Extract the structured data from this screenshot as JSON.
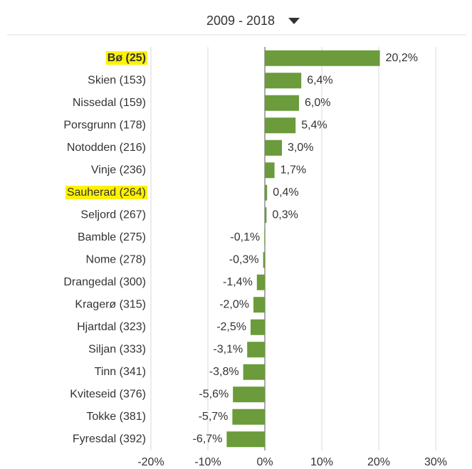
{
  "chart_data": {
    "type": "bar",
    "orientation": "horizontal",
    "title": "2009 - 2018",
    "categories": [
      "Bø (25)",
      "Skien (153)",
      "Nissedal (159)",
      "Porsgrunn (178)",
      "Notodden (216)",
      "Vinje (236)",
      "Sauherad (264)",
      "Seljord (267)",
      "Bamble (275)",
      "Nome (278)",
      "Drangedal (300)",
      "Kragerø (315)",
      "Hjartdal (323)",
      "Siljan (333)",
      "Tinn (341)",
      "Kviteseid (376)",
      "Tokke (381)",
      "Fyresdal (392)"
    ],
    "values": [
      20.2,
      6.4,
      6.0,
      5.4,
      3.0,
      1.7,
      0.4,
      0.3,
      -0.1,
      -0.3,
      -1.4,
      -2.0,
      -2.5,
      -3.1,
      -3.8,
      -5.6,
      -5.7,
      -6.7
    ],
    "value_labels": [
      "20,2%",
      "6,4%",
      "6,0%",
      "5,4%",
      "3,0%",
      "1,7%",
      "0,4%",
      "0,3%",
      "-0,1%",
      "-0,3%",
      "-1,4%",
      "-2,0%",
      "-2,5%",
      "-3,1%",
      "-3,8%",
      "-5,6%",
      "-5,7%",
      "-6,7%"
    ],
    "color": "#6b9b3a",
    "highlight": [
      0,
      6
    ],
    "xlim": [
      -20,
      30
    ],
    "xticks": [
      {
        "value": -20,
        "label": "-20%"
      },
      {
        "value": -10,
        "label": "-10%"
      },
      {
        "value": 0,
        "label": "0%"
      },
      {
        "value": 10,
        "label": "10%"
      },
      {
        "value": 20,
        "label": "20%"
      },
      {
        "value": 30,
        "label": "30%"
      }
    ],
    "grid": true
  }
}
